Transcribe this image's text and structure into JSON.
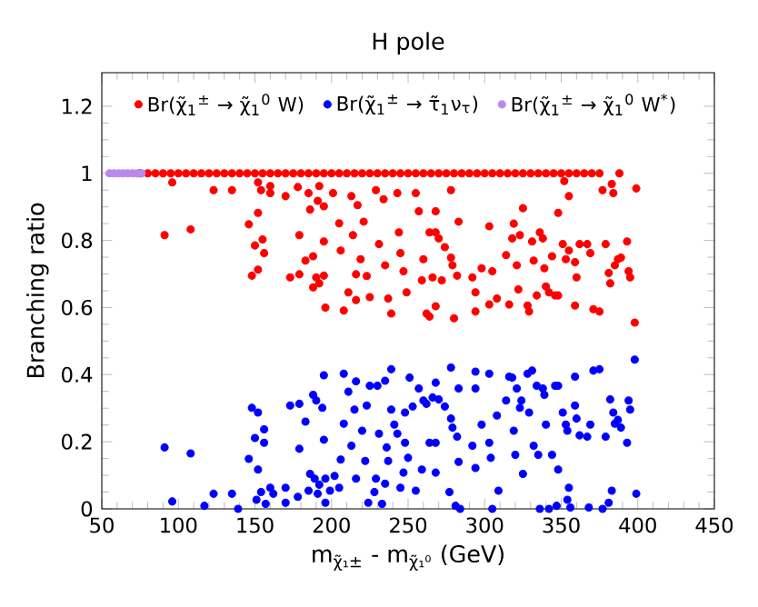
{
  "chart_data": {
    "type": "scatter",
    "title": "H pole",
    "xlabel": "m$_{χ̃₁±}$ - m$_{χ̃₁⁰}$ (GeV)",
    "ylabel": "Branching ratio",
    "xlim": [
      50,
      450
    ],
    "xticks": [
      50,
      100,
      150,
      200,
      250,
      300,
      350,
      400,
      450
    ],
    "ylim": [
      0,
      1.3
    ],
    "yticks": [
      0,
      0.2,
      0.4,
      0.6,
      0.8,
      1,
      1.2
    ],
    "marker": "circle",
    "legend": "top",
    "grid": false,
    "series": [
      {
        "name": "Br(χ̃$_{1}$$^{±}$ → χ̃$_{1}$$^{0}$ W)",
        "color": "#ff0000",
        "x": [
          75,
          80,
          85,
          90,
          95,
          100,
          105,
          110,
          115,
          120,
          125,
          130,
          135,
          140,
          145,
          150,
          155,
          160,
          165,
          170,
          175,
          180,
          185,
          190,
          195,
          200,
          205,
          210,
          215,
          220,
          225,
          230,
          235,
          240,
          245,
          250,
          255,
          260,
          265,
          270,
          275,
          280,
          285,
          290,
          295,
          300,
          305,
          310,
          315,
          320,
          325,
          330,
          335,
          340,
          345,
          350,
          355,
          360,
          365,
          370,
          375,
          96,
          91,
          108,
          123,
          135,
          146,
          152,
          150,
          152,
          148,
          152,
          155,
          156,
          154,
          160,
          160,
          170,
          173,
          178,
          179,
          179,
          183,
          185,
          186,
          188,
          188,
          190,
          192,
          191,
          192,
          195,
          195,
          195,
          196,
          201,
          205,
          206,
          208,
          211,
          213,
          214,
          216,
          216,
          217,
          219,
          221,
          223,
          225,
          229,
          231,
          234,
          235,
          237,
          239,
          243,
          244,
          245,
          247,
          249,
          255,
          257,
          259,
          260,
          262,
          264,
          266,
          278,
          268,
          283,
          268,
          270,
          274,
          278,
          279,
          282,
          272,
          292,
          294,
          294,
          280,
          268,
          264,
          298,
          303,
          303,
          305,
          308,
          314,
          316,
          318,
          319,
          321,
          322,
          323,
          325,
          328,
          329,
          331,
          332,
          334,
          336,
          338,
          339,
          340,
          342,
          344,
          346,
          348,
          348,
          352,
          355,
          351,
          353,
          355,
          359,
          360,
          359,
          362,
          367,
          369,
          371,
          375,
          377,
          379,
          381,
          382,
          383,
          384,
          385,
          387,
          389,
          393,
          394,
          395,
          399,
          398,
          388
        ],
        "values": [
          1,
          1,
          1,
          1,
          1,
          1,
          1,
          1,
          1,
          1,
          1,
          1,
          1,
          1,
          1,
          1,
          1,
          1,
          1,
          1,
          1,
          1,
          1,
          1,
          1,
          1,
          1,
          1,
          1,
          1,
          1,
          1,
          1,
          1,
          1,
          1,
          1,
          1,
          1,
          1,
          1,
          1,
          1,
          1,
          1,
          1,
          1,
          1,
          1,
          1,
          1,
          1,
          1,
          1,
          1,
          1,
          1,
          1,
          1,
          1,
          1,
          0.973,
          0.816,
          0.833,
          0.95,
          0.95,
          0.848,
          0.973,
          0.785,
          0.882,
          0.695,
          0.713,
          0.803,
          0.762,
          0.95,
          0.962,
          0.941,
          0.932,
          0.69,
          0.959,
          0.816,
          0.699,
          0.74,
          0.941,
          0.892,
          0.753,
          0.66,
          0.69,
          0.672,
          0.918,
          0.962,
          0.902,
          0.797,
          0.695,
          0.6,
          0.941,
          0.851,
          0.77,
          0.591,
          0.645,
          0.932,
          0.816,
          0.622,
          0.699,
          0.905,
          0.744,
          0.856,
          0.694,
          0.631,
          0.95,
          0.789,
          0.923,
          0.726,
          0.627,
          0.582,
          0.941,
          0.824,
          0.762,
          0.708,
          0.645,
          0.941,
          0.887,
          0.681,
          0.744,
          0.582,
          0.824,
          0.69,
          0.95,
          0.887,
          0.856,
          0.824,
          0.806,
          0.78,
          0.749,
          0.726,
          0.695,
          0.681,
          0.69,
          0.645,
          0.588,
          0.568,
          0.604,
          0.573,
          0.717,
          0.609,
          0.842,
          0.708,
          0.627,
          0.756,
          0.609,
          0.806,
          0.85,
          0.726,
          0.654,
          0.816,
          0.896,
          0.606,
          0.588,
          0.797,
          0.74,
          0.636,
          0.824,
          0.806,
          0.717,
          0.663,
          0.645,
          0.753,
          0.636,
          0.636,
          0.882,
          0.977,
          0.932,
          0.789,
          0.744,
          0.77,
          0.735,
          0.69,
          0.606,
          0.789,
          0.789,
          0.762,
          0.595,
          0.588,
          0.95,
          0.789,
          0.703,
          0.672,
          0.968,
          0.941,
          0.726,
          0.744,
          0.749,
          0.797,
          0.708,
          0.69,
          0.955,
          0.555,
          1
        ]
      },
      {
        "name": "Br(χ̃$_{1}$$^{±}$ → τ̃$_{1}$ν$_{τ}$)",
        "color": "#0000ff",
        "x": [
          91,
          108,
          96,
          117,
          123,
          135,
          139,
          148,
          152,
          150,
          146,
          152,
          156,
          156,
          151,
          154,
          157,
          160,
          162,
          170,
          170,
          173,
          178,
          179,
          179,
          183,
          185,
          186,
          188,
          189,
          190,
          191,
          192,
          194,
          195,
          195,
          196,
          196,
          199,
          202,
          205,
          206,
          208,
          208,
          211,
          213,
          215,
          216,
          216,
          220,
          222,
          223,
          224,
          225,
          228,
          229,
          230,
          231,
          233,
          235,
          235,
          236,
          237,
          239,
          239,
          241,
          243,
          245,
          247,
          248,
          248,
          250,
          251,
          253,
          255,
          257,
          259,
          260,
          262,
          264,
          266,
          278,
          268,
          283,
          270,
          274,
          278,
          279,
          282,
          268,
          292,
          294,
          294,
          283,
          268,
          277,
          281,
          284,
          294,
          298,
          303,
          303,
          304,
          305,
          308,
          309,
          314,
          316,
          318,
          319,
          320,
          321,
          323,
          324,
          325,
          328,
          329,
          331,
          332,
          334,
          335,
          336,
          338,
          339,
          340,
          342,
          344,
          346,
          348,
          348,
          347,
          351,
          353,
          354,
          354,
          355,
          356,
          359,
          359,
          360,
          362,
          367,
          368,
          369,
          371,
          375,
          377,
          379,
          381,
          382,
          383,
          384,
          385,
          387,
          389,
          393,
          394,
          395,
          399,
          398
        ],
        "values": [
          0.183,
          0.165,
          0.022,
          0.009,
          0.045,
          0.045,
          0,
          0.301,
          0.287,
          0.211,
          0.149,
          0.117,
          0.237,
          0.197,
          0.027,
          0.05,
          0.015,
          0.063,
          0.045,
          0.063,
          0.018,
          0.308,
          0.036,
          0.179,
          0.313,
          0.26,
          0.054,
          0.104,
          0.34,
          0.09,
          0.323,
          0.045,
          0.072,
          0.301,
          0.206,
          0.398,
          0.018,
          0.09,
          0.054,
          0.098,
          0.063,
          0.147,
          0.403,
          0.254,
          0.349,
          0.188,
          0.296,
          0.38,
          0.09,
          0.233,
          0.143,
          0.308,
          0.018,
          0.367,
          0.05,
          0.09,
          0.367,
          0.224,
          0.015,
          0.382,
          0.075,
          0.183,
          0.143,
          0.416,
          0.296,
          0.251,
          0.224,
          0.063,
          0.108,
          0.197,
          0.287,
          0.152,
          0.391,
          0.305,
          0.054,
          0.359,
          0.117,
          0.323,
          0.313,
          0.197,
          0.332,
          0.421,
          0.376,
          0.359,
          0.326,
          0.305,
          0.269,
          0.242,
          0.215,
          0.197,
          0.188,
          0.359,
          0.122,
          0.14,
          0.108,
          0.05,
          0.009,
          0,
          0.409,
          0.251,
          0.403,
          0.197,
          0.152,
          0,
          0.278,
          0.054,
          0.323,
          0.394,
          0.391,
          0.233,
          0.161,
          0.359,
          0.301,
          0.323,
          0.104,
          0.403,
          0.287,
          0.412,
          0.188,
          0.367,
          0.161,
          0,
          0.359,
          0.34,
          0.251,
          0,
          0.161,
          0.367,
          0.367,
          0.117,
          0.009,
          0.287,
          0.251,
          0.233,
          0.027,
          0.063,
          0.004,
          0.308,
          0.394,
          0.269,
          0.219,
          0.215,
          0.004,
          0.251,
          0.412,
          0.416,
          0,
          0.215,
          0.018,
          0.326,
          0.054,
          0.287,
          0.254,
          0.265,
          0.242,
          0.197,
          0.323,
          0.296,
          0.045,
          0.445
        ]
      },
      {
        "name": "Br(χ̃$_{1}$$^{±}$ → χ̃$_{1}$$^{0}$ W$^{*}$)",
        "color": "#bb88ee",
        "x": [
          55,
          58,
          61,
          64,
          67,
          70,
          73,
          76
        ],
        "values": [
          1,
          1,
          1,
          1,
          1,
          1,
          1,
          1
        ]
      }
    ]
  }
}
